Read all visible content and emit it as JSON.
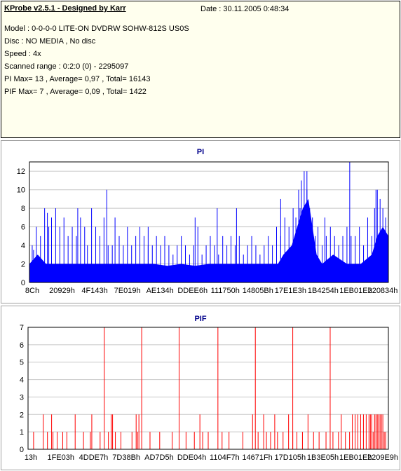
{
  "info": {
    "title": "KProbe v2.5.1 - Designed by Karr",
    "date": "Date : 30.11.2005 0:48:34",
    "lines": [
      "Model : 0-0-0-0 LITE-ON DVDRW SOHW-812S  US0S",
      "Disc : NO MEDIA , No disc",
      "Speed : 4x",
      "Scanned range : 0:2:0 (0) - 2295097",
      "PI Max= 13 , Average= 0,97 , Total= 16143",
      "PIF Max= 7 , Average= 0,09 , Total= 1422"
    ]
  },
  "chart_data": [
    {
      "type": "bar",
      "title": "PI",
      "color": "#0000ff",
      "xlim": [
        0,
        260
      ],
      "ylim": [
        0,
        13
      ],
      "yticks": [
        0,
        2,
        4,
        6,
        8,
        10,
        12
      ],
      "xtick_labels": [
        "8Ch",
        "20929h",
        "4F143h",
        "7E019h",
        "AE134h",
        "DDEE6h",
        "111750h",
        "14805Bh",
        "17E1E3h",
        "1B4254h",
        "1EB01Eh",
        "220834h"
      ],
      "baseline": [
        [
          0,
          2
        ],
        [
          6,
          3
        ],
        [
          12,
          2
        ],
        [
          20,
          2
        ],
        [
          30,
          2
        ],
        [
          40,
          2
        ],
        [
          50,
          2
        ],
        [
          60,
          2
        ],
        [
          70,
          2
        ],
        [
          80,
          2
        ],
        [
          90,
          2
        ],
        [
          100,
          1.8
        ],
        [
          110,
          2
        ],
        [
          120,
          1.8
        ],
        [
          130,
          2
        ],
        [
          140,
          2
        ],
        [
          150,
          2
        ],
        [
          160,
          2
        ],
        [
          170,
          2
        ],
        [
          180,
          2
        ],
        [
          184,
          3
        ],
        [
          190,
          4
        ],
        [
          194,
          6
        ],
        [
          198,
          8
        ],
        [
          202,
          9
        ],
        [
          205,
          6
        ],
        [
          208,
          3
        ],
        [
          212,
          2
        ],
        [
          220,
          3
        ],
        [
          230,
          2
        ],
        [
          240,
          2
        ],
        [
          248,
          3
        ],
        [
          252,
          5
        ],
        [
          256,
          6
        ],
        [
          260,
          5
        ]
      ],
      "spikes": [
        [
          2,
          4
        ],
        [
          5,
          6
        ],
        [
          8,
          5
        ],
        [
          11,
          8
        ],
        [
          14,
          6
        ],
        [
          16,
          7
        ],
        [
          19,
          8
        ],
        [
          22,
          6
        ],
        [
          25,
          7
        ],
        [
          28,
          5
        ],
        [
          31,
          6
        ],
        [
          34,
          5
        ],
        [
          37,
          7
        ],
        [
          40,
          6
        ],
        [
          42,
          4
        ],
        [
          45,
          8
        ],
        [
          48,
          6
        ],
        [
          51,
          5
        ],
        [
          54,
          7
        ],
        [
          57,
          4
        ],
        [
          60,
          4
        ],
        [
          62,
          7
        ],
        [
          65,
          5
        ],
        [
          68,
          4
        ],
        [
          71,
          6
        ],
        [
          74,
          4
        ],
        [
          77,
          5
        ],
        [
          80,
          6
        ],
        [
          83,
          5
        ],
        [
          86,
          4
        ],
        [
          89,
          4
        ],
        [
          92,
          5
        ],
        [
          95,
          4
        ],
        [
          98,
          5
        ],
        [
          101,
          4
        ],
        [
          104,
          3
        ],
        [
          107,
          4
        ],
        [
          110,
          5
        ],
        [
          113,
          4
        ],
        [
          116,
          3
        ],
        [
          119,
          4
        ],
        [
          122,
          6
        ],
        [
          125,
          3
        ],
        [
          128,
          4
        ],
        [
          131,
          5
        ],
        [
          134,
          4
        ],
        [
          137,
          3
        ],
        [
          140,
          5
        ],
        [
          143,
          4
        ],
        [
          146,
          5
        ],
        [
          149,
          4
        ],
        [
          152,
          5
        ],
        [
          155,
          3
        ],
        [
          158,
          4
        ],
        [
          161,
          5
        ],
        [
          164,
          4
        ],
        [
          167,
          3
        ],
        [
          170,
          4
        ],
        [
          173,
          5
        ],
        [
          176,
          4
        ],
        [
          179,
          6
        ],
        [
          182,
          5
        ],
        [
          185,
          7
        ],
        [
          188,
          6
        ],
        [
          191,
          8
        ],
        [
          193,
          7
        ],
        [
          195,
          10
        ],
        [
          197,
          11
        ],
        [
          199,
          12
        ],
        [
          201,
          10
        ],
        [
          203,
          8
        ],
        [
          205,
          7
        ],
        [
          207,
          5
        ],
        [
          209,
          6
        ],
        [
          212,
          4
        ],
        [
          215,
          5
        ],
        [
          218,
          6
        ],
        [
          221,
          5
        ],
        [
          224,
          4
        ],
        [
          227,
          5
        ],
        [
          230,
          6
        ],
        [
          233,
          5
        ],
        [
          236,
          5
        ],
        [
          239,
          6
        ],
        [
          242,
          4
        ],
        [
          245,
          7
        ],
        [
          248,
          5
        ],
        [
          250,
          8
        ],
        [
          252,
          10
        ],
        [
          254,
          9
        ],
        [
          256,
          8
        ],
        [
          258,
          7
        ]
      ],
      "peaks": [
        [
          3,
          3.5
        ],
        [
          13,
          7.5
        ],
        [
          35,
          8
        ],
        [
          56,
          10
        ],
        [
          86,
          6
        ],
        [
          120,
          7
        ],
        [
          136,
          8
        ],
        [
          150,
          8
        ],
        [
          182,
          9
        ],
        [
          196,
          8
        ],
        [
          201,
          12
        ],
        [
          214,
          7
        ],
        [
          232,
          13
        ],
        [
          251,
          10
        ]
      ]
    },
    {
      "type": "bar",
      "title": "PIF",
      "color": "#ff0000",
      "xlim": [
        0,
        260
      ],
      "ylim": [
        0,
        7
      ],
      "yticks": [
        0,
        1,
        2,
        3,
        4,
        5,
        6,
        7
      ],
      "xtick_labels": [
        "13h",
        "1FE03h",
        "4DDE7h",
        "7D38Bh",
        "AD7D5h",
        "DDE04h",
        "1104F7h",
        "14671Fh",
        "17D105h",
        "1B3E05h",
        "1EB01Eh",
        "2209E9h"
      ],
      "spikes": [
        [
          4,
          1
        ],
        [
          11,
          2
        ],
        [
          14,
          1
        ],
        [
          17,
          2
        ],
        [
          18,
          1
        ],
        [
          21,
          1
        ],
        [
          25,
          1
        ],
        [
          28,
          1
        ],
        [
          34,
          2
        ],
        [
          40,
          1
        ],
        [
          45,
          1
        ],
        [
          46,
          2
        ],
        [
          52,
          1
        ],
        [
          58,
          1
        ],
        [
          60,
          2
        ],
        [
          61,
          2
        ],
        [
          63,
          1
        ],
        [
          67,
          1
        ],
        [
          75,
          1
        ],
        [
          78,
          2
        ],
        [
          79,
          1
        ],
        [
          80,
          2
        ],
        [
          88,
          1
        ],
        [
          95,
          1
        ],
        [
          104,
          1
        ],
        [
          114,
          1
        ],
        [
          120,
          1
        ],
        [
          124,
          2
        ],
        [
          126,
          1
        ],
        [
          130,
          1
        ],
        [
          140,
          1
        ],
        [
          145,
          1
        ],
        [
          155,
          1
        ],
        [
          162,
          2
        ],
        [
          166,
          1
        ],
        [
          170,
          2
        ],
        [
          172,
          1
        ],
        [
          175,
          1
        ],
        [
          178,
          2
        ],
        [
          180,
          1
        ],
        [
          184,
          1
        ],
        [
          188,
          2
        ],
        [
          191,
          1
        ],
        [
          194,
          1
        ],
        [
          198,
          1
        ],
        [
          202,
          2
        ],
        [
          206,
          1
        ],
        [
          210,
          1
        ],
        [
          215,
          1
        ],
        [
          220,
          1
        ],
        [
          224,
          1
        ],
        [
          226,
          2
        ],
        [
          229,
          1
        ],
        [
          232,
          1
        ],
        [
          234,
          2
        ],
        [
          236,
          2
        ],
        [
          238,
          2
        ],
        [
          240,
          2
        ],
        [
          242,
          2
        ],
        [
          244,
          2
        ],
        [
          246,
          2
        ],
        [
          247,
          2
        ],
        [
          248,
          2
        ],
        [
          249,
          1
        ],
        [
          250,
          2
        ],
        [
          251,
          2
        ],
        [
          252,
          2
        ],
        [
          253,
          2
        ],
        [
          254,
          2
        ],
        [
          255,
          2
        ],
        [
          256,
          2
        ],
        [
          257,
          1
        ],
        [
          258,
          1
        ]
      ],
      "peaks": [
        [
          55,
          7
        ],
        [
          82,
          7
        ],
        [
          109,
          7
        ],
        [
          137,
          7
        ],
        [
          164,
          7
        ],
        [
          191,
          7
        ],
        [
          218,
          7
        ]
      ]
    }
  ]
}
